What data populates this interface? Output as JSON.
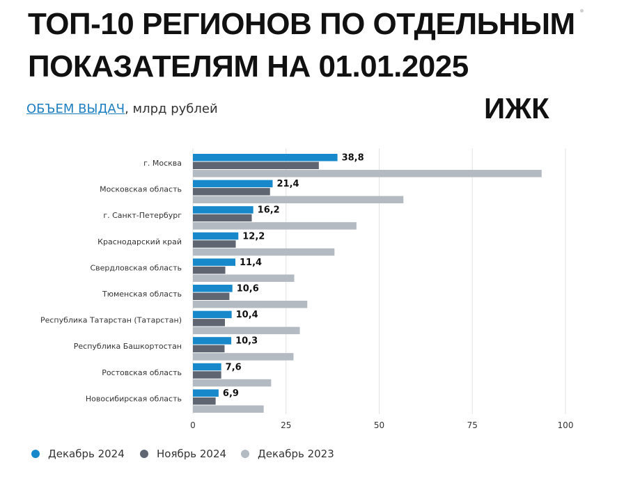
{
  "header": {
    "title_line1": "ТОП-10 РЕГИОНОВ ПО ОТДЕЛЬНЫМ",
    "title_line2": "ПОКАЗАТЕЛЯМ НА 01.01.2025",
    "subtitle_link": "ОБЪЕМ ВЫДАЧ",
    "subtitle_rest": ", млрд рублей",
    "badge": "ИЖК"
  },
  "colors": {
    "dec2024": "#1788c9",
    "nov2024": "#5f6571",
    "dec2023": "#b4bac2",
    "grid": "#e2e2e2",
    "text": "#333333"
  },
  "legend": [
    {
      "label": "Декабрь 2024",
      "color": "#1788c9"
    },
    {
      "label": "Ноябрь 2024",
      "color": "#5f6571"
    },
    {
      "label": "Декабрь 2023",
      "color": "#b4bac2"
    }
  ],
  "chart_data": {
    "type": "bar",
    "orientation": "horizontal",
    "categories": [
      "г. Москва",
      "Московская область",
      "г. Санкт-Петербург",
      "Краснодарский край",
      "Свердловская область",
      "Тюменская область",
      "Республика Татарстан (Татарстан)",
      "Республика Башкортостан",
      "Ростовская область",
      "Новосибирская область"
    ],
    "series": [
      {
        "name": "Декабрь 2024",
        "values": [
          38.8,
          21.4,
          16.2,
          12.2,
          11.4,
          10.6,
          10.4,
          10.3,
          7.6,
          6.9
        ]
      },
      {
        "name": "Ноябрь 2024",
        "values": [
          33.8,
          20.7,
          15.8,
          11.5,
          8.7,
          9.8,
          8.6,
          8.5,
          7.6,
          6.1
        ]
      },
      {
        "name": "Декабрь 2023",
        "values": [
          93.6,
          56.5,
          43.9,
          38.0,
          27.2,
          30.7,
          28.7,
          27.0,
          21.0,
          19.0
        ]
      }
    ],
    "data_labels": [
      "38,8",
      "21,4",
      "16,2",
      "12,2",
      "11,4",
      "10,6",
      "10,4",
      "10,3",
      "7,6",
      "6,9"
    ],
    "xlim": [
      0,
      100
    ],
    "xticks": [
      "0",
      "25",
      "50",
      "75",
      "100"
    ],
    "xtick_values": [
      0,
      25,
      50,
      75,
      100
    ],
    "grid": true,
    "legend_position": "bottom-left"
  }
}
